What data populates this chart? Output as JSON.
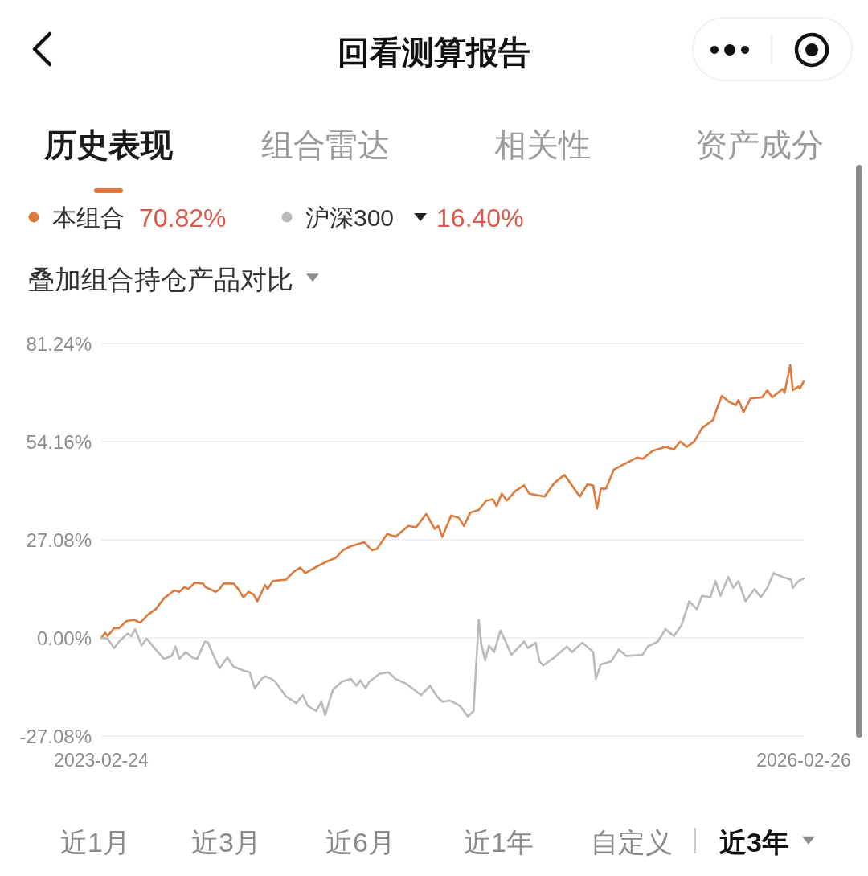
{
  "chart_data": {
    "type": "line",
    "title": "回看测算报告",
    "series": [
      {
        "name": "本组合",
        "color": "#dd7a3c",
        "x": [
          "2023-02-24",
          "2023-03-02",
          "2023-03-06",
          "2023-03-16",
          "2023-03-24",
          "2023-04-04",
          "2023-04-16",
          "2023-04-26",
          "2023-05-08",
          "2023-05-20",
          "2023-06-02",
          "2023-06-18",
          "2023-06-26",
          "2023-07-04",
          "2023-07-10",
          "2023-07-20",
          "2023-08-02",
          "2023-08-06",
          "2023-08-22",
          "2023-08-28",
          "2023-09-03",
          "2023-09-19",
          "2023-09-26",
          "2023-10-04",
          "2023-10-12",
          "2023-10-20",
          "2023-10-26",
          "2023-11-03",
          "2023-11-07",
          "2023-11-11",
          "2023-11-19",
          "2023-12-10",
          "2023-12-22",
          "2024-01-01",
          "2024-01-09",
          "2024-01-28",
          "2024-02-13",
          "2024-02-25",
          "2024-03-08",
          "2024-03-20",
          "2024-04-10",
          "2024-04-22",
          "2024-04-30",
          "2024-05-16",
          "2024-05-29",
          "2024-06-18",
          "2024-06-30",
          "2024-07-16",
          "2024-07-29",
          "2024-08-04",
          "2024-08-10",
          "2024-08-24",
          "2024-09-05",
          "2024-09-13",
          "2024-09-23",
          "2024-10-06",
          "2024-10-18",
          "2024-10-28",
          "2024-11-03",
          "2024-11-11",
          "2024-11-19",
          "2024-12-02",
          "2024-12-16",
          "2024-12-24",
          "2025-01-05",
          "2025-01-17",
          "2025-02-01",
          "2025-02-17",
          "2025-03-01",
          "2025-03-13",
          "2025-03-25",
          "2025-04-03",
          "2025-04-09",
          "2025-04-15",
          "2025-04-23",
          "2025-05-05",
          "2025-05-21",
          "2025-06-11",
          "2025-06-19",
          "2025-07-05",
          "2025-07-25",
          "2025-08-07",
          "2025-08-17",
          "2025-08-27",
          "2025-09-08",
          "2025-09-20",
          "2025-10-07",
          "2025-10-13",
          "2025-10-21",
          "2025-10-31",
          "2025-11-12",
          "2025-11-16",
          "2025-11-24",
          "2025-12-05",
          "2025-12-23",
          "2025-12-31",
          "2026-01-08",
          "2026-01-24",
          "2026-01-27",
          "2026-02-05",
          "2026-02-09",
          "2026-02-18",
          "2026-02-20",
          "2026-02-26"
        ],
        "values": [
          0,
          1.4,
          0.5,
          2.7,
          2.7,
          4.6,
          5.0,
          4.2,
          6.4,
          7.9,
          10.9,
          13.1,
          12.7,
          14.0,
          13.5,
          15.2,
          15.0,
          14.0,
          12.7,
          13.5,
          15.0,
          15.0,
          13.5,
          11.2,
          12.7,
          12.0,
          10.1,
          13.1,
          14.6,
          13.5,
          15.7,
          16.1,
          18.3,
          19.4,
          17.9,
          19.8,
          21.2,
          22.0,
          24.2,
          25.3,
          26.4,
          24.2,
          24.6,
          28.7,
          27.9,
          30.9,
          30.5,
          34.2,
          30.1,
          30.9,
          27.9,
          33.8,
          33.1,
          30.9,
          34.6,
          35.3,
          37.9,
          38.3,
          36.4,
          39.8,
          37.9,
          40.5,
          42.1,
          39.8,
          39.4,
          39.0,
          42.7,
          45.0,
          42.0,
          39.0,
          42.4,
          42.0,
          35.7,
          41.2,
          41.2,
          46.4,
          47.9,
          49.8,
          49.4,
          51.6,
          52.7,
          52.0,
          54.2,
          52.7,
          54.2,
          57.9,
          60.1,
          63.1,
          66.8,
          65.3,
          64.2,
          65.7,
          62.3,
          66.1,
          66.4,
          68.3,
          66.4,
          68.7,
          67.6,
          75.3,
          68.3,
          69.4,
          68.8,
          70.8
        ]
      },
      {
        "name": "沪深300",
        "color": "#bababa",
        "x": [
          "2023-02-24",
          "2023-03-06",
          "2023-03-16",
          "2023-03-24",
          "2023-04-06",
          "2023-04-12",
          "2023-04-18",
          "2023-04-28",
          "2023-05-06",
          "2023-05-20",
          "2023-06-02",
          "2023-06-14",
          "2023-06-20",
          "2023-06-26",
          "2023-07-06",
          "2023-07-16",
          "2023-07-24",
          "2023-08-05",
          "2023-08-10",
          "2023-08-18",
          "2023-08-28",
          "2023-09-09",
          "2023-09-19",
          "2023-10-06",
          "2023-10-14",
          "2023-10-22",
          "2023-11-03",
          "2023-11-07",
          "2023-11-17",
          "2023-11-23",
          "2023-12-10",
          "2023-12-26",
          "2024-01-05",
          "2024-01-13",
          "2024-01-26",
          "2024-02-03",
          "2024-02-09",
          "2024-02-21",
          "2024-03-06",
          "2024-03-20",
          "2024-03-29",
          "2024-04-04",
          "2024-04-12",
          "2024-04-18",
          "2024-05-04",
          "2024-05-18",
          "2024-05-29",
          "2024-06-16",
          "2024-06-30",
          "2024-07-08",
          "2024-07-22",
          "2024-08-02",
          "2024-08-10",
          "2024-08-22",
          "2024-09-07",
          "2024-09-19",
          "2024-09-28",
          "2024-10-06",
          "2024-10-10",
          "2024-10-16",
          "2024-10-22",
          "2024-10-30",
          "2024-11-09",
          "2024-11-17",
          "2024-11-26",
          "2024-12-16",
          "2024-12-22",
          "2025-01-03",
          "2025-01-09",
          "2025-01-15",
          "2025-02-01",
          "2025-02-21",
          "2025-03-01",
          "2025-03-17",
          "2025-04-03",
          "2025-04-07",
          "2025-04-15",
          "2025-05-01",
          "2025-05-13",
          "2025-05-25",
          "2025-06-19",
          "2025-06-27",
          "2025-07-13",
          "2025-07-25",
          "2025-08-07",
          "2025-08-19",
          "2025-08-31",
          "2025-09-12",
          "2025-09-20",
          "2025-10-03",
          "2025-10-11",
          "2025-10-19",
          "2025-10-31",
          "2025-11-08",
          "2025-11-16",
          "2025-11-27",
          "2025-12-11",
          "2025-12-21",
          "2025-12-31",
          "2026-01-10",
          "2026-01-24",
          "2026-02-06",
          "2026-02-09",
          "2026-02-18",
          "2026-02-26"
        ],
        "values": [
          0,
          -0.2,
          -2.8,
          -1.0,
          1.2,
          0.5,
          2.4,
          -2.1,
          -0.2,
          -3.2,
          -5.8,
          -5.0,
          -2.4,
          -5.8,
          -3.9,
          -5.4,
          -5.8,
          -1.0,
          -1.3,
          -4.7,
          -8.4,
          -5.4,
          -8.0,
          -9.1,
          -9.5,
          -13.9,
          -11.0,
          -10.6,
          -11.3,
          -12.1,
          -16.2,
          -18.0,
          -15.8,
          -18.8,
          -20.2,
          -17.6,
          -21.3,
          -14.3,
          -12.1,
          -11.3,
          -13.2,
          -11.7,
          -13.9,
          -12.1,
          -9.9,
          -9.5,
          -11.3,
          -12.8,
          -14.7,
          -15.8,
          -13.2,
          -16.2,
          -17.6,
          -17.3,
          -18.8,
          -21.7,
          -20.2,
          5.0,
          -1.7,
          -6.2,
          -2.1,
          -3.9,
          2.0,
          -1.0,
          -4.7,
          -1.0,
          -2.8,
          -1.3,
          -6.5,
          -7.6,
          -5.4,
          -2.4,
          -3.9,
          -1.3,
          -3.9,
          -11.3,
          -7.3,
          -6.5,
          -3.2,
          -5.0,
          -4.7,
          -2.4,
          -1.0,
          2.4,
          0.5,
          3.5,
          10.1,
          7.9,
          11.6,
          11.2,
          15.7,
          11.6,
          16.8,
          13.8,
          15.7,
          10.1,
          13.5,
          11.2,
          13.8,
          17.9,
          16.8,
          16.1,
          13.8,
          15.7,
          16.4
        ]
      }
    ],
    "xlim": [
      "2023-02-24",
      "2026-02-26"
    ],
    "xticks": [
      "2023-02-24",
      "2026-02-26"
    ],
    "ylim": [
      -27.08,
      81.24
    ],
    "yticks": [
      {
        "value": -27.08,
        "label": "-27.08%"
      },
      {
        "value": 0,
        "label": "0.00%"
      },
      {
        "value": 27.08,
        "label": "27.08%"
      },
      {
        "value": 54.16,
        "label": "54.16%"
      },
      {
        "value": 81.24,
        "label": "81.24%"
      }
    ],
    "grid": "y",
    "legend": "top left",
    "annotations": [
      "历史表现",
      "组合雷达",
      "相关性",
      "资产成分",
      "70.82%",
      "16.40%",
      "叠加组合持仓产品对比",
      "近1月",
      "近3月",
      "近6月",
      "近1年",
      "自定义",
      "近3年"
    ]
  }
}
